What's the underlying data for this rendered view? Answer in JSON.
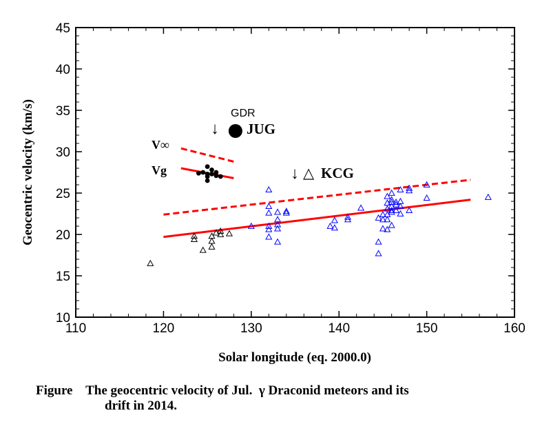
{
  "chart_data": {
    "type": "scatter",
    "xlabel": "Solar longitude (eq. 2000.0)",
    "ylabel": "Geocentric velocity (km/s)",
    "xlim": [
      110,
      160
    ],
    "ylim": [
      10,
      45
    ],
    "xticks": [
      110,
      120,
      130,
      140,
      150,
      160
    ],
    "yticks": [
      10,
      15,
      20,
      25,
      30,
      35,
      40,
      45
    ],
    "grid": false,
    "series": [
      {
        "marker": "open-triangle",
        "color": "#000000",
        "points": [
          [
            118.5,
            16.5
          ],
          [
            123.5,
            19.4
          ],
          [
            123.5,
            19.8
          ],
          [
            124.5,
            18.1
          ],
          [
            125.5,
            18.5
          ],
          [
            125.5,
            19.2
          ],
          [
            125.5,
            19.8
          ],
          [
            126.5,
            20.0
          ],
          [
            126.5,
            20.4
          ],
          [
            127.5,
            20.1
          ],
          [
            126.0,
            20.2
          ]
        ]
      },
      {
        "marker": "open-triangle",
        "color": "#0000ff",
        "points": [
          [
            130.0,
            21.0
          ],
          [
            132.0,
            25.4
          ],
          [
            132.0,
            23.4
          ],
          [
            132.0,
            22.6
          ],
          [
            132.0,
            21.0
          ],
          [
            132.0,
            20.6
          ],
          [
            132.0,
            19.7
          ],
          [
            133.0,
            22.7
          ],
          [
            133.0,
            21.8
          ],
          [
            133.0,
            21.2
          ],
          [
            133.0,
            20.7
          ],
          [
            133.0,
            19.1
          ],
          [
            134.0,
            22.8
          ],
          [
            134.0,
            22.6
          ],
          [
            139.0,
            21.0
          ],
          [
            139.5,
            21.7
          ],
          [
            139.5,
            20.8
          ],
          [
            141.0,
            21.8
          ],
          [
            141.0,
            22.1
          ],
          [
            142.5,
            23.2
          ],
          [
            144.5,
            22.0
          ],
          [
            144.5,
            19.1
          ],
          [
            144.5,
            17.7
          ],
          [
            145.0,
            20.7
          ],
          [
            145.0,
            21.8
          ],
          [
            145.0,
            22.4
          ],
          [
            145.5,
            24.6
          ],
          [
            145.5,
            23.8
          ],
          [
            145.5,
            23.1
          ],
          [
            145.5,
            22.4
          ],
          [
            145.5,
            21.8
          ],
          [
            145.5,
            20.6
          ],
          [
            146.0,
            25.0
          ],
          [
            146.0,
            24.2
          ],
          [
            146.0,
            23.9
          ],
          [
            146.0,
            23.4
          ],
          [
            146.0,
            22.9
          ],
          [
            146.0,
            22.7
          ],
          [
            146.0,
            21.1
          ],
          [
            146.5,
            23.9
          ],
          [
            146.5,
            23.6
          ],
          [
            146.5,
            22.9
          ],
          [
            147.0,
            25.4
          ],
          [
            147.0,
            24.0
          ],
          [
            147.0,
            23.4
          ],
          [
            147.0,
            22.5
          ],
          [
            148.0,
            25.6
          ],
          [
            148.0,
            25.3
          ],
          [
            148.0,
            22.9
          ],
          [
            150.0,
            26.0
          ],
          [
            150.0,
            24.4
          ],
          [
            157.0,
            24.5
          ]
        ]
      },
      {
        "marker": "small-filled-circle",
        "color": "#000000",
        "points": [
          [
            124.0,
            27.4
          ],
          [
            124.5,
            27.5
          ],
          [
            125.0,
            28.2
          ],
          [
            125.0,
            27.0
          ],
          [
            125.0,
            26.5
          ],
          [
            125.5,
            27.8
          ],
          [
            125.5,
            27.3
          ],
          [
            126.0,
            27.1
          ],
          [
            126.0,
            27.5
          ],
          [
            126.5,
            27.0
          ],
          [
            125.0,
            27.3
          ]
        ]
      },
      {
        "marker": "large-filled-circle",
        "color": "#000000",
        "points": [
          [
            128.2,
            32.5
          ]
        ]
      }
    ],
    "lines": [
      {
        "style": "dashed",
        "color": "#ff0000",
        "points": [
          [
            120,
            22.4
          ],
          [
            155,
            26.6
          ]
        ]
      },
      {
        "style": "solid",
        "color": "#ff0000",
        "points": [
          [
            120,
            19.7
          ],
          [
            155,
            24.2
          ]
        ]
      },
      {
        "style": "dashed",
        "color": "#ff0000",
        "points": [
          [
            122,
            30.4
          ],
          [
            128,
            28.8
          ]
        ]
      },
      {
        "style": "solid",
        "color": "#ff0000",
        "points": [
          [
            122,
            28.0
          ],
          [
            128,
            26.8
          ]
        ]
      }
    ],
    "annotations": {
      "gdr": "GDR",
      "jug": "JUG",
      "kcg": "KCG",
      "v_inf": "V∞",
      "vg": "Vg",
      "down_arrow": "↓",
      "triangle_symbol": "△"
    }
  },
  "caption": {
    "line1": "Figure    The geocentric velocity of Jul.  γ Draconid meteors and its",
    "line2": "drift in 2014."
  }
}
